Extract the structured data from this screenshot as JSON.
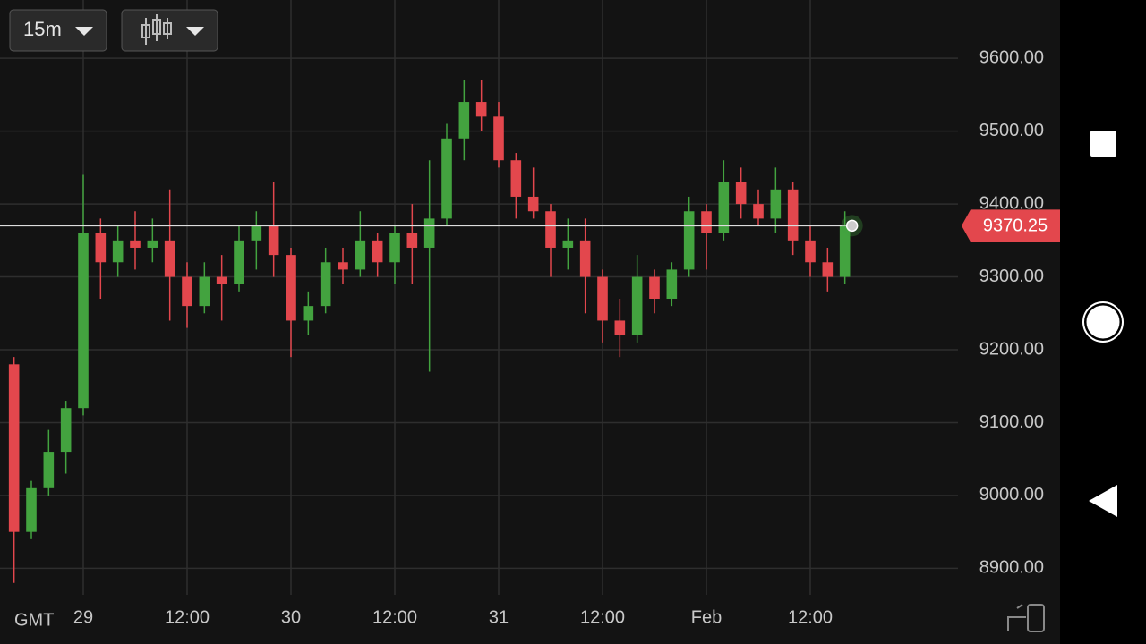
{
  "ui": {
    "interval": "15m",
    "timezone": "GMT"
  },
  "chart_data": {
    "type": "candlestick",
    "categories": [
      null,
      null,
      null,
      null,
      "29",
      null,
      null,
      null,
      null,
      null,
      "12:00",
      null,
      null,
      null,
      null,
      null,
      "30",
      null,
      null,
      null,
      null,
      null,
      "12:00",
      null,
      null,
      null,
      null,
      null,
      "31",
      null,
      null,
      null,
      null,
      null,
      "12:00",
      null,
      null,
      null,
      null,
      null,
      "Feb",
      null,
      null,
      null,
      null,
      null,
      "12:00",
      null,
      null
    ],
    "open": [
      9180,
      8950,
      9010,
      9060,
      9120,
      9360,
      9320,
      9350,
      9340,
      9350,
      9300,
      9260,
      9300,
      9290,
      9350,
      9370,
      9330,
      9240,
      9260,
      9320,
      9310,
      9350,
      9320,
      9360,
      9340,
      9380,
      9490,
      9540,
      9520,
      9460,
      9410,
      9390,
      9340,
      9350,
      9300,
      9240,
      9220,
      9300,
      9270,
      9310,
      9390,
      9360,
      9430,
      9400,
      9380,
      9420,
      9350,
      9320,
      9300
    ],
    "high": [
      9190,
      9020,
      9090,
      9130,
      9440,
      9380,
      9370,
      9390,
      9380,
      9420,
      9320,
      9320,
      9330,
      9370,
      9390,
      9430,
      9340,
      9280,
      9340,
      9340,
      9390,
      9360,
      9370,
      9400,
      9460,
      9510,
      9570,
      9570,
      9540,
      9470,
      9450,
      9400,
      9380,
      9380,
      9310,
      9270,
      9330,
      9310,
      9320,
      9410,
      9400,
      9460,
      9450,
      9420,
      9450,
      9430,
      9370,
      9340,
      9390
    ],
    "low": [
      8880,
      8940,
      9000,
      9030,
      9110,
      9270,
      9300,
      9310,
      9320,
      9240,
      9230,
      9250,
      9240,
      9280,
      9310,
      9300,
      9190,
      9220,
      9250,
      9290,
      9300,
      9300,
      9290,
      9290,
      9170,
      9370,
      9460,
      9500,
      9450,
      9380,
      9380,
      9300,
      9310,
      9250,
      9210,
      9190,
      9210,
      9250,
      9260,
      9300,
      9310,
      9350,
      9380,
      9370,
      9360,
      9330,
      9300,
      9280,
      9290
    ],
    "close": [
      8950,
      9010,
      9060,
      9120,
      9360,
      9320,
      9350,
      9340,
      9350,
      9300,
      9260,
      9300,
      9290,
      9350,
      9370,
      9330,
      9240,
      9260,
      9320,
      9310,
      9350,
      9320,
      9360,
      9340,
      9380,
      9490,
      9540,
      9520,
      9460,
      9410,
      9390,
      9340,
      9350,
      9300,
      9240,
      9220,
      9300,
      9270,
      9310,
      9390,
      9360,
      9430,
      9400,
      9380,
      9420,
      9350,
      9320,
      9300,
      9370
    ],
    "up_color": "#43a33f",
    "down_color": "#e3474d",
    "current_price": 9370.25,
    "current_price_color": "#e3474d",
    "ylim": [
      8860,
      9680
    ],
    "yticks": [
      {
        "value": 8900,
        "label": "8900.00"
      },
      {
        "value": 9000,
        "label": "9000.00"
      },
      {
        "value": 9100,
        "label": "9100.00"
      },
      {
        "value": 9200,
        "label": "9200.00"
      },
      {
        "value": 9300,
        "label": "9300.00"
      },
      {
        "value": 9400,
        "label": "9400.00"
      },
      {
        "value": 9500,
        "label": "9500.00"
      },
      {
        "value": 9600,
        "label": "9600.00"
      }
    ],
    "grid": true
  }
}
